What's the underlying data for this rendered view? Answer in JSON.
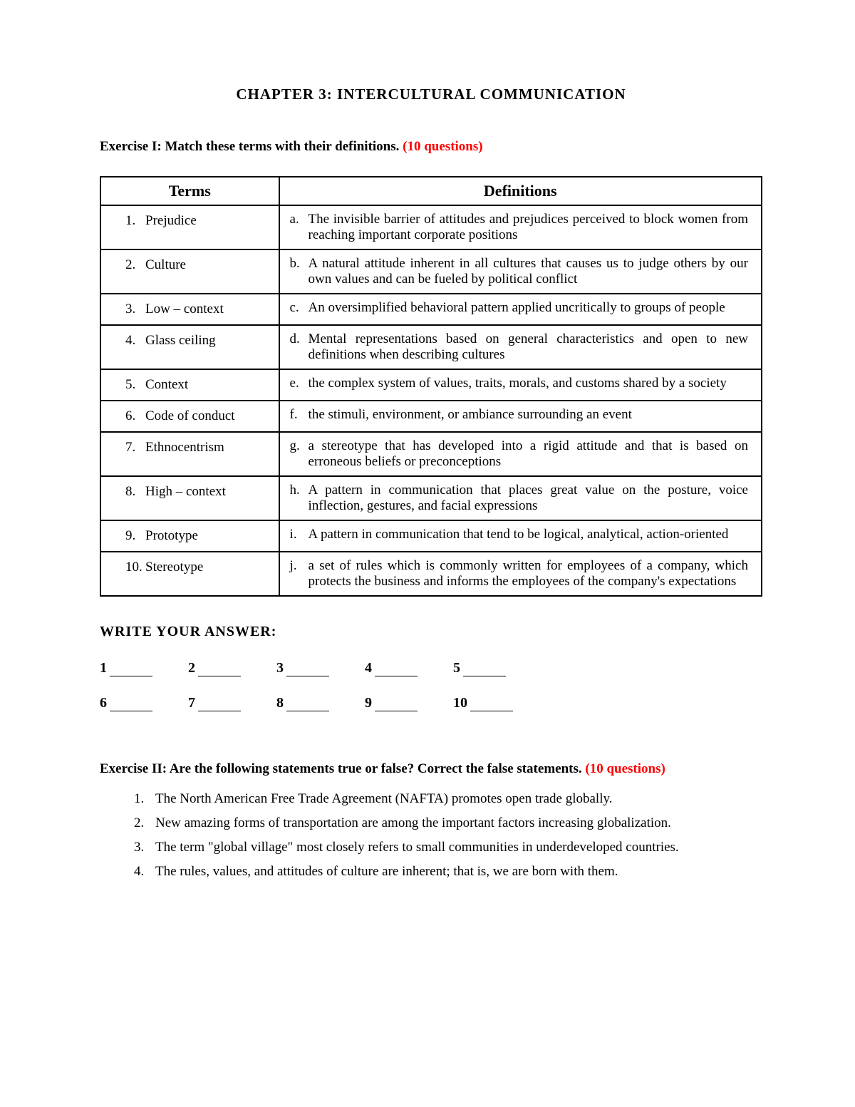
{
  "chapter_title": "CHAPTER 3: INTERCULTURAL COMMUNICATION",
  "exercise1": {
    "heading_prefix": "Exercise I:  Match these terms with their definitions. ",
    "heading_red": "(10 questions)",
    "col_terms": "Terms",
    "col_defs": "Definitions",
    "rows": [
      {
        "num": "1.",
        "term": "Prejudice",
        "letter": "a.",
        "def": "The invisible barrier of attitudes and prejudices perceived to block women from reaching important corporate positions"
      },
      {
        "num": "2.",
        "term": "Culture",
        "letter": "b.",
        "def": "A natural attitude inherent in all cultures that causes us to judge others by our own values and can be fueled by political conflict"
      },
      {
        "num": "3.",
        "term": "Low – context",
        "letter": "c.",
        "def": "An oversimplified behavioral pattern applied uncritically to groups of people"
      },
      {
        "num": "4.",
        "term": "Glass ceiling",
        "letter": "d.",
        "def": "Mental representations based on general characteristics and open to new definitions when describing cultures"
      },
      {
        "num": "5.",
        "term": "Context",
        "letter": "e.",
        "def": "the complex system of values, traits, morals, and customs shared by a society"
      },
      {
        "num": "6.",
        "term": "Code of conduct",
        "letter": "f.",
        "def": "the stimuli, environment, or ambiance surrounding an event"
      },
      {
        "num": "7.",
        "term": "Ethnocentrism",
        "letter": "g.",
        "def": "a stereotype that has developed into a rigid attitude and that is based on erroneous beliefs or preconceptions"
      },
      {
        "num": "8.",
        "term": "High – context",
        "letter": "h.",
        "def": "A pattern in communication that places great value on the posture, voice inflection, gestures, and facial expressions"
      },
      {
        "num": "9.",
        "term": "Prototype",
        "letter": "i.",
        "def": "A pattern in communication that tend to be logical, analytical, action-oriented"
      },
      {
        "num": "10.",
        "term": "Stereotype",
        "letter": "j.",
        "def": "a set of rules which is commonly written for employees of a company, which protects the business and informs the employees of the company's expectations"
      }
    ]
  },
  "answer_heading": "WRITE YOUR ANSWER:",
  "answers_row1": [
    "1",
    "2",
    "3",
    "4",
    "5"
  ],
  "answers_row2": [
    "6",
    "7",
    "8",
    "9",
    "10"
  ],
  "exercise2": {
    "heading_prefix": "Exercise II: Are the following statements true or false? Correct the false statements. ",
    "heading_red": "(10 questions)",
    "items": [
      {
        "num": "1.",
        "text": "The North American Free Trade Agreement (NAFTA) promotes open trade globally."
      },
      {
        "num": "2.",
        "text": "New amazing forms of transportation are among the important factors increasing globalization."
      },
      {
        "num": "3.",
        "text": "The term \"global village\" most closely refers to small communities in underdeveloped countries."
      },
      {
        "num": "4.",
        "text": "The rules, values, and attitudes of culture are inherent; that is, we are born with them."
      }
    ]
  },
  "colors": {
    "text": "#000000",
    "red": "#ff0000",
    "background": "#ffffff",
    "border": "#000000"
  }
}
